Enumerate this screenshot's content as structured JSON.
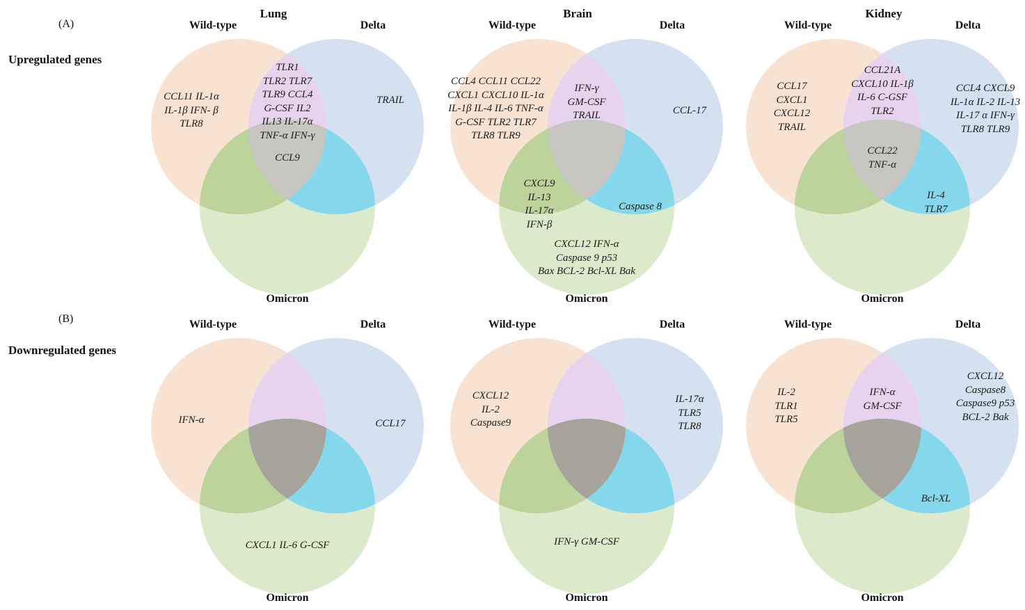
{
  "figure": {
    "panels": {
      "a_label": "(A)",
      "a_title": "Upregulated genes",
      "b_label": "(B)",
      "b_title": "Downregulated genes"
    },
    "columns": {
      "lung": "Lung",
      "brain": "Brain",
      "kidney": "Kidney"
    },
    "set_labels": {
      "wt": "Wild-type",
      "delta": "Delta",
      "omicron": "Omicron"
    }
  },
  "colors": {
    "wt": "#F8E3D3",
    "delta": "#D4E1F0",
    "omicron": "#DCEACB",
    "wt_delta": "#E8D3EE",
    "wt_omicron": "#BDD39C",
    "delta_omicron": "#85D7EB",
    "center_a": "#C7C6C2",
    "center_b": "#A6A29C"
  },
  "upregulated": {
    "lung": {
      "wt_only": [
        "CCL11 IL-1α",
        "IL-1β  IFN- β",
        "TLR8"
      ],
      "wt_delta": [
        "TLR1",
        "TLR2 TLR7",
        "TLR9  CCL4",
        "G-CSF  IL2",
        "IL13  IL-17α",
        "TNF-α  IFN-γ"
      ],
      "center": [
        "CCL9"
      ],
      "delta_only": [
        "TRAIL"
      ]
    },
    "brain": {
      "wt_only": [
        "CCL4 CCL11 CCL22",
        "CXCL1  CXCL10 IL-1α",
        "IL-1β  IL-4  IL-6  TNF-α",
        "G-CSF  TLR2  TLR7",
        "TLR8  TLR9"
      ],
      "wt_delta": [
        "IFN-γ",
        "GM-CSF",
        "TRAIL"
      ],
      "delta_only": [
        "CCL-17"
      ],
      "wt_omicron": [
        "CXCL9",
        "IL-13",
        "IL-17α",
        "IFN-β"
      ],
      "delta_omicron": [
        "Caspase 8"
      ],
      "omicron_only": [
        "CXCL12  IFN-α",
        "Caspase 9  p53",
        "Bax   BCL-2  Bcl-XL  Bak"
      ]
    },
    "kidney": {
      "wt_only": [
        "CCL17",
        "CXCL1",
        "CXCL12",
        "TRAIL"
      ],
      "wt_delta": [
        "CCL21A",
        "CXCL10  IL-1β",
        "IL-6  C-GSF",
        "TLR2"
      ],
      "delta_only": [
        "CCL4  CXCL9",
        "IL-1α  IL-2  IL-13",
        "IL-17 α  IFN-γ",
        "TLR8  TLR9"
      ],
      "center": [
        "CCL22",
        "TNF-α"
      ],
      "delta_omicron": [
        "IL-4",
        "TLR7"
      ]
    }
  },
  "downregulated": {
    "lung": {
      "wt_only": [
        "IFN-α"
      ],
      "delta_only": [
        "CCL17"
      ],
      "omicron_only": [
        "CXCL1   IL-6   G-CSF"
      ]
    },
    "brain": {
      "wt_only": [
        "CXCL12",
        "IL-2",
        "Caspase9"
      ],
      "delta_only": [
        "IL-17α",
        "TLR5",
        "TLR8"
      ],
      "omicron_only": [
        "IFN-γ   GM-CSF"
      ]
    },
    "kidney": {
      "wt_only": [
        "IL-2",
        "TLR1",
        "TLR5"
      ],
      "wt_delta": [
        "IFN-α",
        "GM-CSF"
      ],
      "delta_only": [
        "CXCL12",
        "Caspase8",
        "Caspase9  p53",
        "BCL-2  Bak"
      ],
      "delta_omicron": [
        "Bcl-XL"
      ]
    }
  }
}
